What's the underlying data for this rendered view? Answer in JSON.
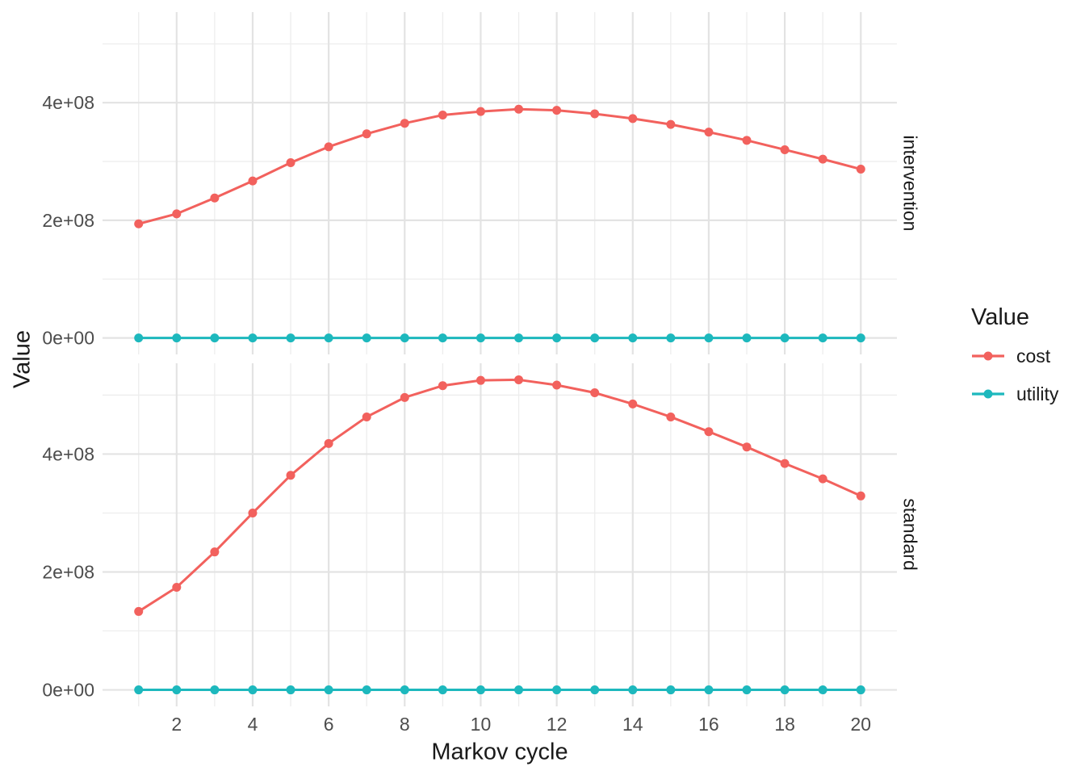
{
  "chart_data": {
    "type": "line",
    "title": "",
    "xlabel": "Markov cycle",
    "ylabel": "Value",
    "x": [
      1,
      2,
      3,
      4,
      5,
      6,
      7,
      8,
      9,
      10,
      11,
      12,
      13,
      14,
      15,
      16,
      17,
      18,
      19,
      20
    ],
    "x_axis": {
      "major_ticks": [
        2,
        4,
        6,
        8,
        10,
        12,
        14,
        16,
        18,
        20
      ],
      "minor_ticks": [
        1,
        3,
        5,
        7,
        9,
        11,
        13,
        15,
        17,
        19
      ],
      "range": [
        0.05,
        20.95
      ]
    },
    "y_axis": {
      "major_tick_labels": [
        "0e+00",
        "2e+08",
        "4e+08"
      ],
      "major_tick_values": [
        0,
        200000000.0,
        400000000.0
      ],
      "minor_tick_values": [
        100000000.0,
        300000000.0,
        500000000.0
      ],
      "range": [
        -28000000.0,
        554000000.0
      ]
    },
    "facets": [
      {
        "label": "intervention",
        "series": [
          {
            "name": "cost",
            "color": "#F2615D",
            "values": [
              194000000.0,
              211000000.0,
              238000000.0,
              267000000.0,
              298000000.0,
              325000000.0,
              347000000.0,
              365000000.0,
              379000000.0,
              385000000.0,
              389000000.0,
              387000000.0,
              381000000.0,
              373000000.0,
              363000000.0,
              350000000.0,
              336000000.0,
              320000000.0,
              304000000.0,
              287000000.0
            ]
          },
          {
            "name": "utility",
            "color": "#1DB8BD",
            "values": [
              0,
              0,
              0,
              0,
              0,
              0,
              0,
              0,
              0,
              0,
              0,
              0,
              0,
              0,
              0,
              0,
              0,
              0,
              0,
              0
            ]
          }
        ]
      },
      {
        "label": "standard",
        "series": [
          {
            "name": "cost",
            "color": "#F2615D",
            "values": [
              133000000.0,
              174000000.0,
              234000000.0,
              300000000.0,
              364000000.0,
              418000000.0,
              463000000.0,
              496000000.0,
              516000000.0,
              525000000.0,
              526000000.0,
              517000000.0,
              504000000.0,
              485000000.0,
              463000000.0,
              438000000.0,
              412000000.0,
              384000000.0,
              358000000.0,
              329000000.0
            ]
          },
          {
            "name": "utility",
            "color": "#1DB8BD",
            "values": [
              0,
              0,
              0,
              0,
              0,
              0,
              0,
              0,
              0,
              0,
              0,
              0,
              0,
              0,
              0,
              0,
              0,
              0,
              0,
              0
            ]
          }
        ]
      }
    ],
    "legend": {
      "title": "Value",
      "position": "right",
      "items": [
        {
          "label": "cost",
          "color": "#F2615D"
        },
        {
          "label": "utility",
          "color": "#1DB8BD"
        }
      ]
    },
    "grid": true,
    "styles": {
      "background": "#FFFFFF",
      "grid_major": "#E3E3E3",
      "grid_minor": "#EDEDED",
      "axis_text": "#4D4D4D",
      "title_text": "#1A1A1A",
      "marker_radius": 5.5,
      "line_width": 3
    }
  }
}
